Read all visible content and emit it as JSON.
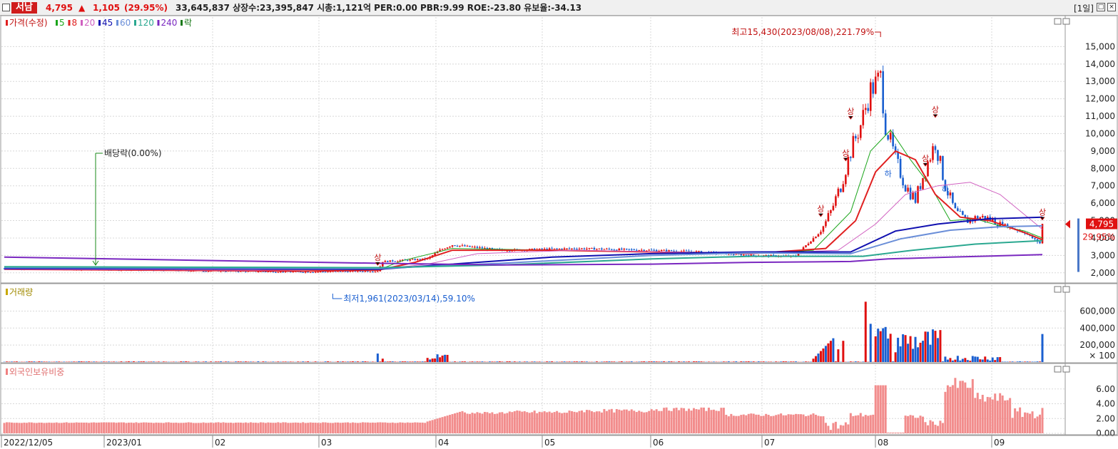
{
  "header": {
    "stock_name": "서남",
    "price": "4,795",
    "change": "1,105",
    "change_pct": "(29.95%)",
    "info": "33,645,837  상장수:23,395,847 시총:1,121억  PER:0.00 PBR:9.99 ROE:-23.80 유보율:-34.13",
    "period": "[1일]"
  },
  "price_panel": {
    "legend": [
      {
        "label": "가격(수정)",
        "color": "#e02020"
      },
      {
        "label": "5",
        "color": "#1aa51a"
      },
      {
        "label": "8",
        "color": "#e02020"
      },
      {
        "label": "20",
        "color": "#d060c0"
      },
      {
        "label": "45",
        "color": "#1010b0"
      },
      {
        "label": "60",
        "color": "#6a8ed8"
      },
      {
        "label": "120",
        "color": "#2aa890"
      },
      {
        "label": "240",
        "color": "#7a28c0"
      },
      {
        "label": "락",
        "color": "#1a7a1a"
      }
    ],
    "high_annotation": "최고15,430(2023/08/08),221.79%",
    "low_annotation": "최저1,961(2023/03/14),59.10%",
    "dividend_annotation": "배당락(0.00%)",
    "limit_up_mark": "상",
    "limit_down_mark": "하",
    "current_price_label": "4,795",
    "current_change_label": "29.95%"
  },
  "volume_panel": {
    "title": "거래량",
    "unit_label": "× 100"
  },
  "foreign_panel": {
    "title": "외국인보유비중"
  },
  "chart_data": [
    {
      "type": "candlestick",
      "title": "가격(수정)",
      "ylim": [
        1500,
        16000
      ],
      "yticks": [
        2000,
        3000,
        4000,
        5000,
        6000,
        7000,
        8000,
        9000,
        10000,
        11000,
        12000,
        13000,
        14000,
        15000
      ],
      "ytick_labels": [
        "2,000",
        "3,000",
        "4,000",
        "5,000",
        "6,000",
        "7,000",
        "8,000",
        "9,000",
        "10,000",
        "11,000",
        "12,000",
        "13,000",
        "14,000",
        "15,000"
      ],
      "x_labels": [
        "2022/12/05",
        "2023/01",
        "02",
        "03",
        "04",
        "05",
        "06",
        "07",
        "08",
        "09"
      ],
      "key_points": [
        {
          "date": "2023/03/14",
          "label": "low",
          "value": 1961
        },
        {
          "date": "2023/08/08",
          "label": "high",
          "value": 15430
        },
        {
          "date": "last",
          "label": "close",
          "value": 4795
        }
      ],
      "series": [
        {
          "name": "5",
          "points": [
            [
              0,
              2200
            ],
            [
              60,
              2150
            ],
            [
              120,
              2100
            ],
            [
              150,
              2150
            ],
            [
              160,
              2700
            ],
            [
              180,
              3400
            ],
            [
              220,
              3300
            ],
            [
              260,
              3200
            ],
            [
              300,
              3100
            ],
            [
              325,
              3300
            ],
            [
              340,
              5500
            ],
            [
              348,
              9000
            ],
            [
              356,
              10200
            ],
            [
              364,
              8500
            ],
            [
              372,
              7000
            ],
            [
              380,
              5000
            ],
            [
              390,
              5100
            ],
            [
              400,
              4700
            ],
            [
              410,
              4400
            ],
            [
              417,
              4000
            ]
          ]
        },
        {
          "name": "8",
          "points": [
            [
              0,
              2200
            ],
            [
              60,
              2150
            ],
            [
              120,
              2100
            ],
            [
              150,
              2150
            ],
            [
              165,
              2600
            ],
            [
              180,
              3300
            ],
            [
              220,
              3300
            ],
            [
              260,
              3200
            ],
            [
              300,
              3100
            ],
            [
              330,
              3400
            ],
            [
              342,
              5000
            ],
            [
              350,
              7800
            ],
            [
              358,
              9000
            ],
            [
              366,
              8500
            ],
            [
              374,
              6500
            ],
            [
              384,
              5200
            ],
            [
              396,
              5000
            ],
            [
              410,
              4300
            ],
            [
              417,
              3900
            ]
          ]
        },
        {
          "name": "20",
          "points": [
            [
              0,
              2200
            ],
            [
              100,
              2150
            ],
            [
              150,
              2200
            ],
            [
              170,
              2500
            ],
            [
              190,
              3100
            ],
            [
              230,
              3300
            ],
            [
              300,
              3100
            ],
            [
              335,
              3300
            ],
            [
              350,
              4800
            ],
            [
              362,
              6500
            ],
            [
              375,
              7000
            ],
            [
              388,
              7200
            ],
            [
              400,
              6500
            ],
            [
              417,
              4500
            ]
          ]
        },
        {
          "name": "45",
          "points": [
            [
              0,
              2250
            ],
            [
              150,
              2200
            ],
            [
              180,
              2500
            ],
            [
              220,
              2900
            ],
            [
              260,
              3100
            ],
            [
              300,
              3200
            ],
            [
              340,
              3200
            ],
            [
              358,
              4400
            ],
            [
              375,
              4800
            ],
            [
              395,
              5100
            ],
            [
              417,
              5200
            ]
          ]
        },
        {
          "name": "60",
          "points": [
            [
              0,
              2300
            ],
            [
              150,
              2250
            ],
            [
              200,
              2550
            ],
            [
              260,
              3000
            ],
            [
              300,
              3150
            ],
            [
              340,
              3100
            ],
            [
              360,
              3950
            ],
            [
              380,
              4450
            ],
            [
              400,
              4650
            ],
            [
              417,
              4700
            ]
          ]
        },
        {
          "name": "120",
          "points": [
            [
              0,
              2350
            ],
            [
              150,
              2300
            ],
            [
              200,
              2450
            ],
            [
              260,
              2800
            ],
            [
              300,
              2950
            ],
            [
              345,
              2950
            ],
            [
              365,
              3300
            ],
            [
              390,
              3650
            ],
            [
              417,
              3850
            ]
          ]
        },
        {
          "name": "240",
          "points": [
            [
              0,
              2900
            ],
            [
              150,
              2550
            ],
            [
              200,
              2450
            ],
            [
              260,
              2500
            ],
            [
              300,
              2600
            ],
            [
              340,
              2650
            ],
            [
              355,
              2800
            ],
            [
              380,
              2900
            ],
            [
              417,
              3050
            ]
          ]
        }
      ]
    },
    {
      "type": "bar",
      "title": "거래량",
      "ylim": [
        0,
        780000
      ],
      "yticks": [
        200000,
        400000,
        600000
      ],
      "ytick_labels": [
        "200,000",
        "400,000",
        "600,000"
      ]
    },
    {
      "type": "bar",
      "title": "외국인보유비중",
      "ylim": [
        0,
        8
      ],
      "yticks": [
        0,
        2,
        4,
        6
      ],
      "ytick_labels": [
        "0.00",
        "2.00",
        "4.00",
        "6.00"
      ]
    }
  ]
}
